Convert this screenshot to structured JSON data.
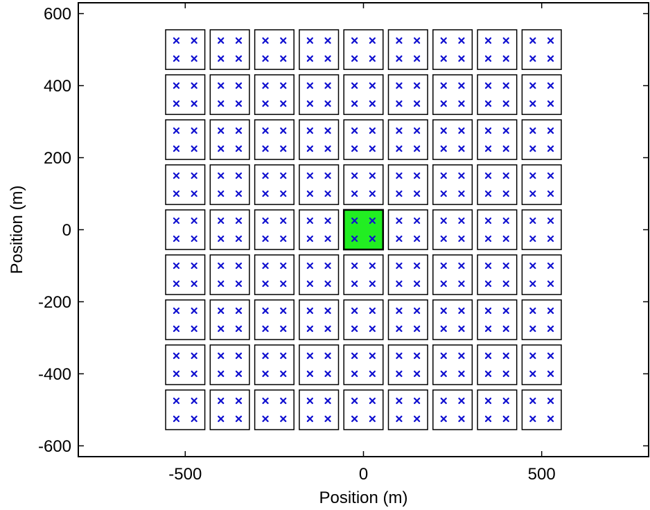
{
  "chart_data": {
    "type": "scatter",
    "title": "",
    "xlabel": "Position (m)",
    "ylabel": "Position (m)",
    "xlim": [
      -800,
      800
    ],
    "ylim": [
      -630,
      630
    ],
    "xticks": [
      -500,
      0,
      500
    ],
    "xtick_labels": [
      "-500",
      "0",
      "500"
    ],
    "yticks": [
      600,
      400,
      200,
      0,
      -200,
      -400,
      -600
    ],
    "ytick_labels": [
      "600",
      "400",
      "200",
      "0",
      "-200",
      "-400",
      "-600"
    ],
    "grid": false,
    "tiles": {
      "centers_x": [
        -500,
        -375,
        -250,
        -125,
        0,
        125,
        250,
        375,
        500
      ],
      "centers_y": [
        500,
        375,
        250,
        125,
        0,
        -125,
        -250,
        -375,
        -500
      ],
      "half_width": 55,
      "highlighted": [
        {
          "x": 0,
          "y": 0
        }
      ],
      "marker_offsets": [
        [
          -25,
          25
        ],
        [
          25,
          25
        ],
        [
          -25,
          -25
        ],
        [
          25,
          -25
        ]
      ]
    },
    "colors": {
      "marker": "#1010d0",
      "tile_border": "#000000",
      "highlight_fill": "#22ee22"
    },
    "marker": "x"
  }
}
